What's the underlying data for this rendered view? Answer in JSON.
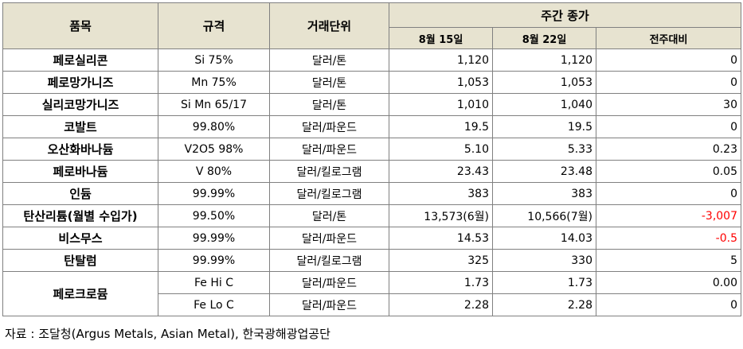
{
  "headers": {
    "item": "품목",
    "spec": "규격",
    "unit": "거래단위",
    "weekly_close": "주간 종가",
    "date1": "8월 15일",
    "date2": "8월 22일",
    "change": "전주대비"
  },
  "rows": [
    {
      "name": "페로실리콘",
      "spec": "Si 75%",
      "unit": "달러/톤",
      "v1": "1,120",
      "v2": "1,120",
      "chg": "0"
    },
    {
      "name": "페로망가니즈",
      "spec": "Mn 75%",
      "unit": "달러/톤",
      "v1": "1,053",
      "v2": "1,053",
      "chg": "0"
    },
    {
      "name": "실리코망가니즈",
      "spec": "Si Mn 65/17",
      "unit": "달러/톤",
      "v1": "1,010",
      "v2": "1,040",
      "chg": "30"
    },
    {
      "name": "코발트",
      "spec": "99.80%",
      "unit": "달러/파운드",
      "v1": "19.5",
      "v2": "19.5",
      "chg": "0"
    },
    {
      "name": "오산화바나듐",
      "spec": "V2O5 98%",
      "unit": "달러/파운드",
      "v1": "5.10",
      "v2": "5.33",
      "chg": "0.23"
    },
    {
      "name": "페로바나듐",
      "spec": "V 80%",
      "unit": "달러/킬로그램",
      "v1": "23.43",
      "v2": "23.48",
      "chg": "0.05"
    },
    {
      "name": "인듐",
      "spec": "99.99%",
      "unit": "달러/킬로그램",
      "v1": "383",
      "v2": "383",
      "chg": "0"
    },
    {
      "name": "탄산리튬(월별 수입가)",
      "spec": "99.50%",
      "unit": "달러/톤",
      "v1": "13,573(6월)",
      "v2": "10,566(7월)",
      "chg": "-3,007"
    },
    {
      "name": "비스무스",
      "spec": "99.99%",
      "unit": "달러/파운드",
      "v1": "14.53",
      "v2": "14.03",
      "chg": "-0.5"
    },
    {
      "name": "탄탈럼",
      "spec": "99.99%",
      "unit": "달러/킬로그램",
      "v1": "325",
      "v2": "330",
      "chg": "5"
    }
  ],
  "ferrochrome": {
    "name": "페로크로뮴",
    "rows": [
      {
        "spec": "Fe Hi C",
        "unit": "달러/파운드",
        "v1": "1.73",
        "v2": "1.73",
        "chg": "0.00"
      },
      {
        "spec": "Fe Lo C",
        "unit": "달러/파운드",
        "v1": "2.28",
        "v2": "2.28",
        "chg": "0"
      }
    ]
  },
  "source": "자료 : 조달청(Argus Metals, Asian Metal), 한국광해광업공단",
  "colors": {
    "header_bg": "#e7e3d0",
    "negative": "#ff0000",
    "border": "#808080"
  }
}
